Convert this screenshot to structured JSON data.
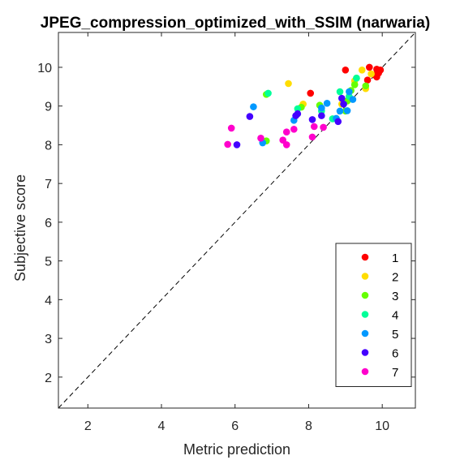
{
  "chart_data": {
    "type": "scatter",
    "title": "JPEG_compression_optimized_with_SSIM (narwaria)",
    "xlabel": "Metric prediction",
    "ylabel": "Subjective score",
    "xlim": [
      1.2,
      10.9
    ],
    "ylim": [
      1.2,
      10.9
    ],
    "xticks": [
      2,
      4,
      6,
      8,
      10
    ],
    "yticks": [
      2,
      3,
      4,
      5,
      6,
      7,
      8,
      9,
      10
    ],
    "grid": false,
    "box": true,
    "legend_position": "bottom-right",
    "reference_line": {
      "style": "dashed",
      "color": "#000000",
      "from": [
        1.2,
        1.2
      ],
      "to": [
        10.9,
        10.9
      ]
    },
    "series": [
      {
        "name": "1",
        "color": "#ff0000",
        "points": [
          [
            9.85,
            9.95
          ],
          [
            9.9,
            9.85
          ],
          [
            9.95,
            9.93
          ],
          [
            9.8,
            9.8
          ],
          [
            9.85,
            9.75
          ],
          [
            9.65,
            10.0
          ],
          [
            9.6,
            9.67
          ],
          [
            9.0,
            9.93
          ],
          [
            8.05,
            9.33
          ]
        ]
      },
      {
        "name": "2",
        "color": "#ffdd00",
        "points": [
          [
            7.45,
            9.58
          ],
          [
            7.85,
            9.05
          ],
          [
            8.9,
            9.05
          ],
          [
            9.45,
            9.93
          ],
          [
            9.55,
            9.45
          ],
          [
            9.7,
            9.83
          ],
          [
            9.25,
            9.65
          ]
        ]
      },
      {
        "name": "3",
        "color": "#66ff00",
        "points": [
          [
            6.85,
            8.1
          ],
          [
            6.85,
            9.3
          ],
          [
            7.8,
            8.97
          ],
          [
            8.3,
            9.02
          ],
          [
            9.05,
            9.13
          ],
          [
            9.15,
            9.4
          ],
          [
            9.25,
            9.55
          ],
          [
            9.3,
            9.72
          ],
          [
            9.55,
            9.52
          ],
          [
            9.0,
            8.87
          ]
        ]
      },
      {
        "name": "4",
        "color": "#00ff99",
        "points": [
          [
            6.9,
            9.33
          ],
          [
            7.7,
            8.93
          ],
          [
            8.85,
            9.37
          ],
          [
            9.1,
            9.25
          ],
          [
            9.3,
            9.72
          ],
          [
            8.35,
            8.87
          ],
          [
            8.65,
            8.67
          ]
        ]
      },
      {
        "name": "5",
        "color": "#0099ff",
        "points": [
          [
            6.5,
            8.98
          ],
          [
            6.75,
            8.05
          ],
          [
            7.6,
            8.63
          ],
          [
            8.35,
            8.95
          ],
          [
            8.5,
            9.07
          ],
          [
            8.75,
            8.68
          ],
          [
            8.85,
            8.87
          ],
          [
            9.05,
            8.88
          ],
          [
            9.1,
            9.37
          ],
          [
            9.2,
            9.17
          ]
        ]
      },
      {
        "name": "6",
        "color": "#4400ff",
        "points": [
          [
            6.05,
            8.0
          ],
          [
            6.4,
            8.73
          ],
          [
            7.65,
            8.75
          ],
          [
            7.7,
            8.8
          ],
          [
            8.1,
            8.65
          ],
          [
            8.35,
            8.75
          ],
          [
            8.8,
            8.6
          ],
          [
            8.9,
            9.2
          ],
          [
            8.95,
            9.05
          ]
        ]
      },
      {
        "name": "7",
        "color": "#ff00cc",
        "points": [
          [
            5.8,
            8.01
          ],
          [
            5.9,
            8.43
          ],
          [
            6.7,
            8.17
          ],
          [
            7.3,
            8.12
          ],
          [
            7.4,
            8.0
          ],
          [
            7.4,
            8.33
          ],
          [
            7.6,
            8.4
          ],
          [
            8.15,
            8.47
          ],
          [
            8.4,
            8.45
          ],
          [
            8.1,
            8.2
          ]
        ]
      }
    ]
  }
}
